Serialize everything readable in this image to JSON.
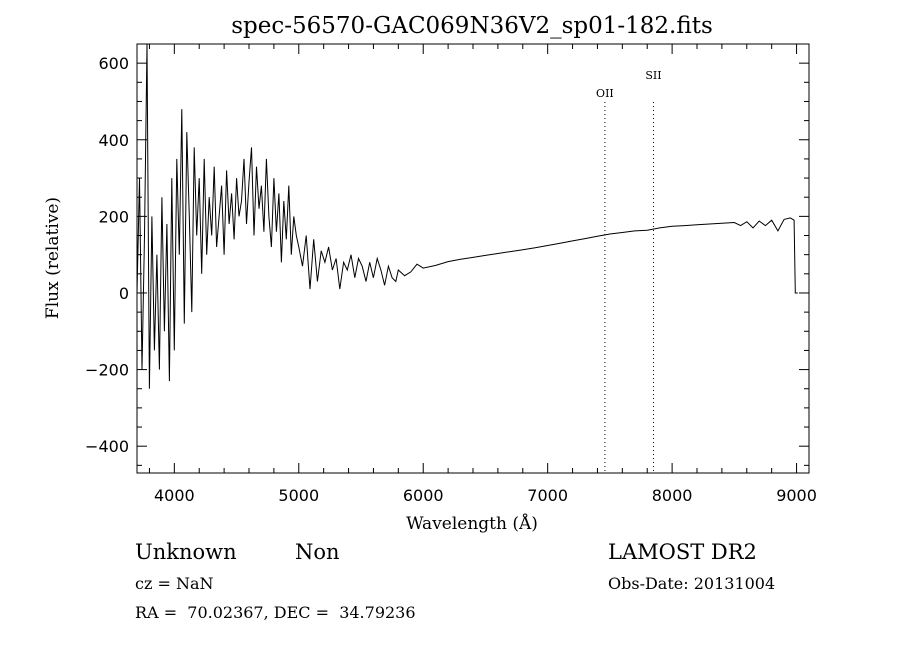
{
  "chart_data": {
    "type": "line",
    "title": "spec-56570-GAC069N36V2_sp01-182.fits",
    "xlabel": "Wavelength (Å)",
    "ylabel": "Flux (relative)",
    "xlim": [
      3700,
      9100
    ],
    "ylim": [
      -470,
      650
    ],
    "xticks": [
      4000,
      5000,
      6000,
      7000,
      8000,
      9000
    ],
    "yticks": [
      -400,
      -200,
      0,
      200,
      400,
      600
    ],
    "grid": false,
    "series": [
      {
        "x": [
          3700,
          3720,
          3740,
          3760,
          3780,
          3800,
          3820,
          3840,
          3860,
          3880,
          3900,
          3920,
          3940,
          3960,
          3980,
          4000,
          4020,
          4040,
          4060,
          4080,
          4100,
          4120,
          4140,
          4160,
          4180,
          4200,
          4220,
          4240,
          4260,
          4280,
          4300,
          4320,
          4340,
          4360,
          4380,
          4400,
          4420,
          4440,
          4460,
          4480,
          4500,
          4520,
          4540,
          4560,
          4580,
          4600,
          4620,
          4640,
          4660,
          4680,
          4700,
          4720,
          4740,
          4760,
          4780,
          4800,
          4820,
          4840,
          4860,
          4880,
          4900,
          4920,
          4940,
          4960,
          4980,
          5000,
          5030,
          5060,
          5090,
          5120,
          5150,
          5180,
          5210,
          5240,
          5270,
          5300,
          5330,
          5360,
          5390,
          5420,
          5450,
          5480,
          5510,
          5540,
          5570,
          5600,
          5630,
          5660,
          5690,
          5720,
          5750,
          5780,
          5800,
          5850,
          5900,
          5950,
          6000,
          6100,
          6200,
          6300,
          6400,
          6500,
          6600,
          6700,
          6800,
          6900,
          7000,
          7100,
          7200,
          7300,
          7400,
          7500,
          7600,
          7700,
          7800,
          7900,
          8000,
          8100,
          8200,
          8300,
          8400,
          8500,
          8550,
          8600,
          8650,
          8700,
          8750,
          8800,
          8850,
          8900,
          8950,
          8980,
          8990,
          9000,
          9010
        ],
        "values": [
          0,
          300,
          -200,
          150,
          650,
          -250,
          200,
          -150,
          100,
          -200,
          250,
          -100,
          180,
          -230,
          300,
          -150,
          350,
          100,
          480,
          -80,
          420,
          200,
          -50,
          380,
          150,
          300,
          50,
          350,
          100,
          250,
          150,
          330,
          120,
          200,
          280,
          100,
          320,
          180,
          260,
          140,
          300,
          200,
          240,
          350,
          180,
          290,
          380,
          150,
          330,
          220,
          280,
          160,
          350,
          200,
          120,
          300,
          160,
          260,
          80,
          240,
          140,
          280,
          100,
          200,
          150,
          120,
          70,
          150,
          10,
          140,
          30,
          110,
          80,
          120,
          60,
          90,
          10,
          80,
          60,
          100,
          40,
          90,
          70,
          30,
          80,
          40,
          90,
          60,
          20,
          70,
          40,
          30,
          60,
          45,
          55,
          75,
          65,
          72,
          82,
          88,
          93,
          98,
          103,
          108,
          113,
          118,
          124,
          130,
          136,
          142,
          148,
          154,
          158,
          162,
          164,
          170,
          174,
          176,
          178,
          180,
          182,
          184,
          176,
          186,
          170,
          188,
          176,
          190,
          162,
          192,
          196,
          190,
          0,
          0,
          0
        ],
        "style": "solid"
      }
    ],
    "line_markers": [
      {
        "label": "OII",
        "x": 7460
      },
      {
        "label": "SII",
        "x": 7850
      }
    ]
  },
  "footer": {
    "object_class": "Unknown",
    "subclass": "Non",
    "survey": "LAMOST DR2",
    "redshift": "cz = NaN",
    "obs_date": "Obs-Date: 20131004",
    "coords": "RA =  70.02367, DEC =  34.79236"
  }
}
